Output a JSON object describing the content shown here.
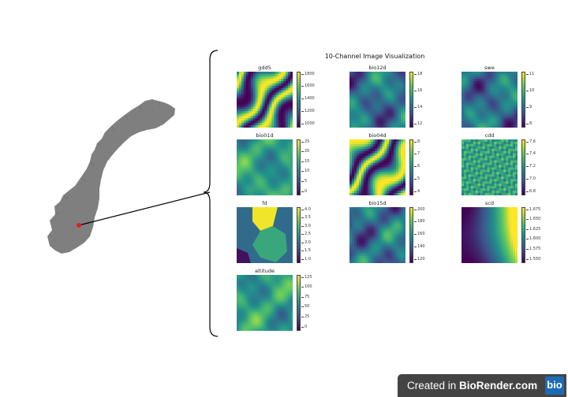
{
  "title": "10-Channel Image Visualization",
  "colors": {
    "map": "#7f7f7f",
    "marker": "#e02020",
    "connector": "#000000",
    "footer_bg": "#444444",
    "logo_bg": "#1a6bb8"
  },
  "channels": [
    {
      "name": "gdd5",
      "ticks": [
        "1800",
        "1600",
        "1400",
        "1200",
        "1000"
      ],
      "pattern": "ridges"
    },
    {
      "name": "bio12d",
      "ticks": [
        "18",
        "16",
        "14",
        "12"
      ],
      "pattern": "dark-blobs"
    },
    {
      "name": "swe",
      "ticks": [
        "11",
        "10",
        "9",
        "8"
      ],
      "pattern": "dark-blobs"
    },
    {
      "name": "bio01d",
      "ticks": [
        "25",
        "20",
        "15",
        "10",
        "5",
        "0"
      ],
      "pattern": "mid"
    },
    {
      "name": "bio04d",
      "ticks": [
        "8",
        "7",
        "6",
        "5",
        "4"
      ],
      "pattern": "ridges"
    },
    {
      "name": "cdd",
      "ticks": [
        "7.6",
        "7.4",
        "7.2",
        "7.0",
        "6.8"
      ],
      "pattern": "noise"
    },
    {
      "name": "fd",
      "ticks": [
        "4.0",
        "3.5",
        "3.0",
        "2.5",
        "2.0",
        "1.5",
        "1.0"
      ],
      "pattern": "regions"
    },
    {
      "name": "bio15d",
      "ticks": [
        "200",
        "180",
        "160",
        "140",
        "120"
      ],
      "pattern": "dark-blobs"
    },
    {
      "name": "scd",
      "ticks": [
        "1.675",
        "1.650",
        "1.625",
        "1.600",
        "1.575",
        "1.550"
      ],
      "pattern": "smooth"
    },
    {
      "name": "altitude",
      "ticks": [
        "125",
        "100",
        "75",
        "50",
        "25",
        "0"
      ],
      "pattern": "mid"
    }
  ],
  "footer": {
    "prefix": "Created in ",
    "brand": "BioRender.com",
    "logo": "bio"
  }
}
